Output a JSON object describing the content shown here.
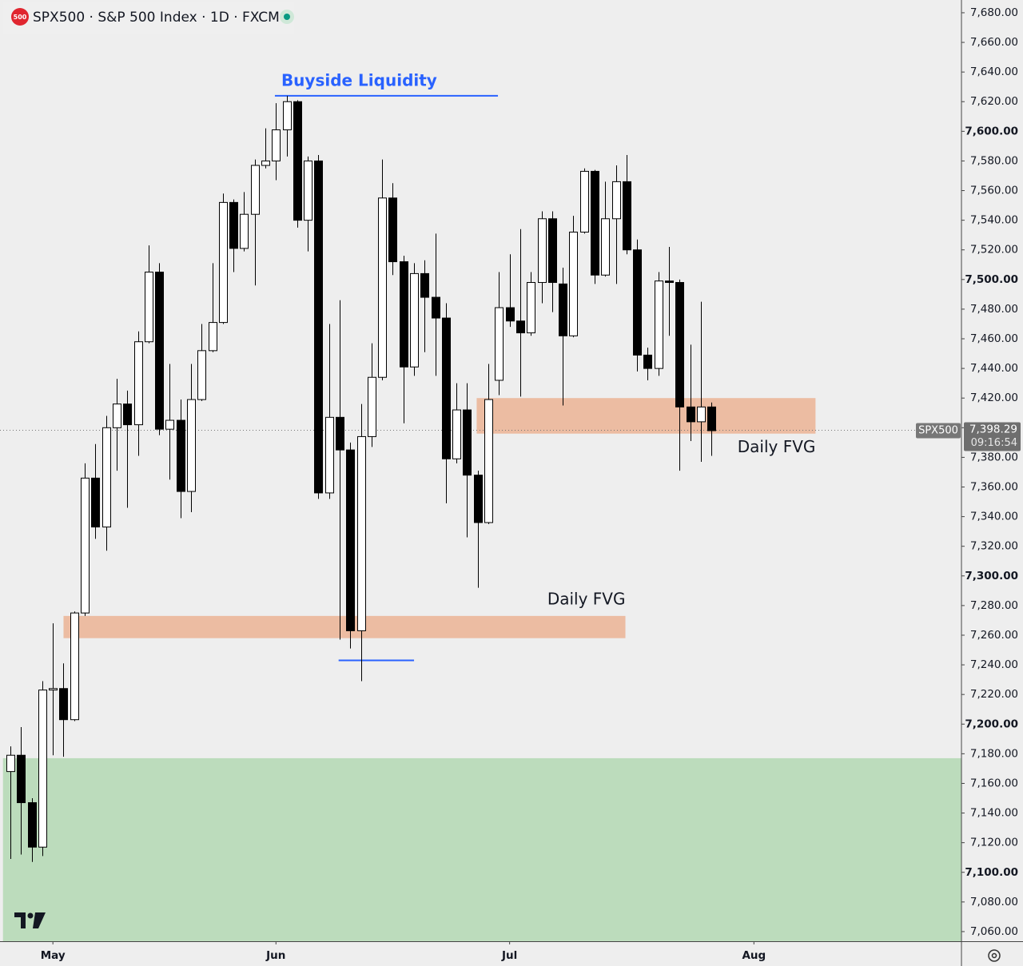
{
  "chart_data": {
    "type": "candlestick",
    "badge": "500",
    "title": "SPX500 · S&P 500 Index · 1D · FXCM",
    "symbol": "SPX500",
    "open": [
      7168,
      7179,
      7147,
      7117,
      7223,
      7224,
      7203,
      7275,
      7366,
      7333,
      7400,
      7416,
      7402,
      7458,
      7505,
      7399,
      7405,
      7357,
      7419,
      7452,
      7471,
      7552,
      7521,
      7544,
      7577,
      7580,
      7601,
      7620,
      7540,
      7580,
      7356,
      7407,
      7385,
      7263,
      7394,
      7434,
      7555,
      7512,
      7441,
      7504,
      7488,
      7474,
      7379,
      7412,
      7368,
      7336,
      7432,
      7481,
      7472,
      7464,
      7498,
      7541,
      7497,
      7462,
      7532,
      7573,
      7503,
      7541,
      7566,
      7520,
      7449,
      7440,
      7499,
      7498,
      7414,
      7404,
      7414
    ],
    "high": [
      7185,
      7198,
      7150,
      7229,
      7268,
      7241,
      7276,
      7376,
      7389,
      7408,
      7433,
      7425,
      7465,
      7523,
      7511,
      7443,
      7419,
      7443,
      7470,
      7511,
      7558,
      7554,
      7559,
      7581,
      7602,
      7619,
      7624,
      7621,
      7583,
      7584,
      7470,
      7486,
      7390,
      7416,
      7457,
      7581,
      7565,
      7516,
      7511,
      7513,
      7531,
      7484,
      7430,
      7430,
      7371,
      7443,
      7505,
      7517,
      7534,
      7505,
      7546,
      7546,
      7508,
      7543,
      7575,
      7574,
      7566,
      7577,
      7584,
      7527,
      7454,
      7505,
      7522,
      7500,
      7456,
      7485,
      7417
    ],
    "low": [
      7109,
      7112,
      7107,
      7111,
      7179,
      7178,
      7202,
      7273,
      7325,
      7317,
      7371,
      7346,
      7381,
      7457,
      7395,
      7365,
      7339,
      7343,
      7418,
      7451,
      7470,
      7505,
      7519,
      7496,
      7575,
      7567,
      7583,
      7535,
      7519,
      7352,
      7352,
      7257,
      7251,
      7229,
      7387,
      7432,
      7503,
      7403,
      7435,
      7451,
      7435,
      7349,
      7376,
      7326,
      7292,
      7335,
      7422,
      7468,
      7421,
      7462,
      7484,
      7478,
      7415,
      7461,
      7531,
      7497,
      7502,
      7497,
      7517,
      7438,
      7432,
      7435,
      7462,
      7371,
      7391,
      7377,
      7381
    ],
    "close": [
      7179,
      7147,
      7117,
      7223,
      7224,
      7203,
      7275,
      7366,
      7333,
      7400,
      7416,
      7402,
      7458,
      7505,
      7399,
      7405,
      7357,
      7419,
      7452,
      7471,
      7552,
      7521,
      7544,
      7577,
      7580,
      7601,
      7620,
      7540,
      7580,
      7356,
      7407,
      7385,
      7263,
      7394,
      7434,
      7555,
      7512,
      7441,
      7504,
      7488,
      7474,
      7379,
      7412,
      7368,
      7336,
      7419,
      7481,
      7472,
      7464,
      7498,
      7541,
      7498,
      7462,
      7532,
      7573,
      7503,
      7541,
      7566,
      7520,
      7449,
      7440,
      7499,
      7498,
      7414,
      7404,
      7414,
      7398
    ],
    "up_color": "#ffffff",
    "down_color": "#000000",
    "last": 7398.29,
    "last_label": "7,398.29",
    "countdown": "09:16:54",
    "xlim": [
      -0.98,
      89.54
    ],
    "ylim": [
      7053.5,
      7688.6
    ],
    "xticks": [
      {
        "value": 4,
        "label": "May"
      },
      {
        "value": 25,
        "label": "Jun"
      },
      {
        "value": 47,
        "label": "Jul"
      },
      {
        "value": 70,
        "label": "Aug"
      }
    ],
    "yticks": [
      {
        "value": 7680,
        "label": "7,680.00"
      },
      {
        "value": 7660,
        "label": "7,660.00"
      },
      {
        "value": 7640,
        "label": "7,640.00"
      },
      {
        "value": 7620,
        "label": "7,620.00"
      },
      {
        "value": 7600,
        "label": "7,600.00"
      },
      {
        "value": 7580,
        "label": "7,580.00"
      },
      {
        "value": 7560,
        "label": "7,560.00"
      },
      {
        "value": 7540,
        "label": "7,540.00"
      },
      {
        "value": 7520,
        "label": "7,520.00"
      },
      {
        "value": 7500,
        "label": "7,500.00"
      },
      {
        "value": 7480,
        "label": "7,480.00"
      },
      {
        "value": 7460,
        "label": "7,460.00"
      },
      {
        "value": 7440,
        "label": "7,440.00"
      },
      {
        "value": 7420,
        "label": "7,420.00"
      },
      {
        "value": 7400,
        "label": "7,400.00"
      },
      {
        "value": 7380,
        "label": "7,380.00"
      },
      {
        "value": 7360,
        "label": "7,360.00"
      },
      {
        "value": 7340,
        "label": "7,340.00"
      },
      {
        "value": 7320,
        "label": "7,320.00"
      },
      {
        "value": 7300,
        "label": "7,300.00"
      },
      {
        "value": 7280,
        "label": "7,280.00"
      },
      {
        "value": 7260,
        "label": "7,260.00"
      },
      {
        "value": 7240,
        "label": "7,240.00"
      },
      {
        "value": 7220,
        "label": "7,220.00"
      },
      {
        "value": 7200,
        "label": "7,200.00"
      },
      {
        "value": 7180,
        "label": "7,180.00"
      },
      {
        "value": 7160,
        "label": "7,160.00"
      },
      {
        "value": 7140,
        "label": "7,140.00"
      },
      {
        "value": 7120,
        "label": "7,120.00"
      },
      {
        "value": 7100,
        "label": "7,100.00"
      },
      {
        "value": 7080,
        "label": "7,080.00"
      },
      {
        "value": 7060,
        "label": "7,060.00"
      }
    ],
    "zones": [
      {
        "range": [
          7053.5,
          7177
        ],
        "x": [
          -0.7,
          89.54
        ],
        "color": "#bcdcbc"
      },
      {
        "label": "Daily FVG",
        "range": [
          7396,
          7420
        ],
        "x": [
          43.9,
          75.8
        ],
        "color": "#ecbca2",
        "label_position": "below"
      },
      {
        "label": "Daily FVG",
        "range": [
          7258,
          7273
        ],
        "x": [
          5.0,
          57.9
        ],
        "color": "#ecbca2",
        "label_position": "above"
      }
    ],
    "lines": [
      {
        "label": "Buyside Liquidity",
        "value": 7624,
        "x": [
          24.9,
          45.9
        ],
        "color": "#2962ff"
      },
      {
        "value": 7243,
        "x": [
          30.9,
          38.0
        ],
        "color": "#2962ff"
      }
    ]
  }
}
